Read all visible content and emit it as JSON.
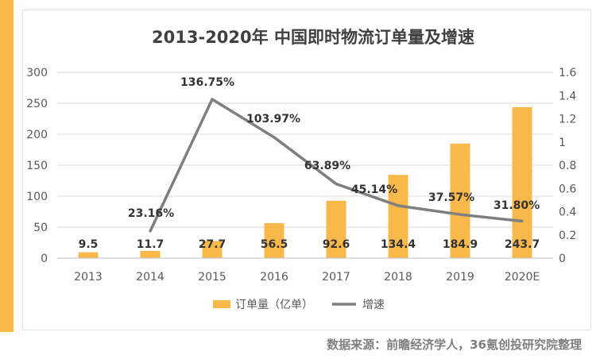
{
  "chart_data": {
    "type": "bar",
    "title": "2013-2020年 中国即时物流订单量及增速",
    "categories": [
      "2013",
      "2014",
      "2015",
      "2016",
      "2017",
      "2018",
      "2019",
      "2020E"
    ],
    "series": [
      {
        "name": "订单量（亿单）",
        "type": "bar",
        "axis": "left",
        "values": [
          9.5,
          11.7,
          27.7,
          56.5,
          92.6,
          134.4,
          184.9,
          243.7
        ],
        "labels": [
          "9.5",
          "11.7",
          "27.7",
          "56.5",
          "92.6",
          "134.4",
          "184.9",
          "243.7"
        ],
        "color": "#f9b84a"
      },
      {
        "name": "增速",
        "type": "line",
        "axis": "right",
        "values": [
          null,
          0.2316,
          1.3675,
          1.0397,
          0.6389,
          0.4514,
          0.3757,
          0.318
        ],
        "labels": [
          null,
          "23.16%",
          "136.75%",
          "103.97%",
          "63.89%",
          "45.14%",
          "37.57%",
          "31.80%"
        ],
        "color": "#7f7f7f"
      }
    ],
    "y_left": {
      "min": 0,
      "max": 300,
      "ticks": [
        "0",
        "50",
        "100",
        "150",
        "200",
        "250",
        "300"
      ]
    },
    "y_right": {
      "min": 0,
      "max": 1.6,
      "ticks": [
        "0",
        "0.2",
        "0.4",
        "0.6",
        "0.8",
        "1",
        "1.2",
        "1.4",
        "1.6"
      ]
    },
    "grid": true,
    "legend": "bottom"
  },
  "source_note": "数据来源：前瞻经济学人，36氪创投研究院整理",
  "colors": {
    "accent": "#f9b84a",
    "bar": "#f9b84a",
    "line": "#7f7f7f",
    "grid": "#d9d9d9"
  }
}
